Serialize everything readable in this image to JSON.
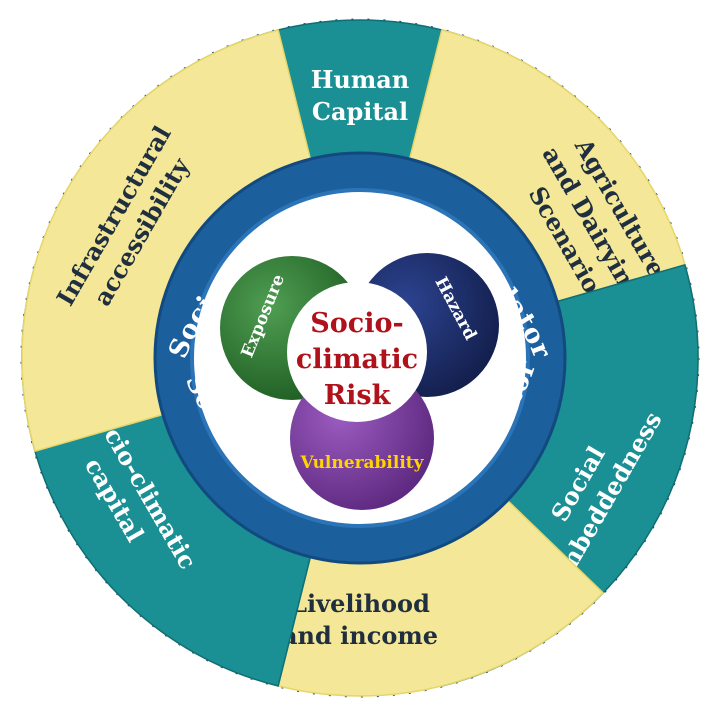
{
  "colors": {
    "teal": "#1a8f94",
    "teal_dark": "#0f6f74",
    "yellow": "#f4e797",
    "yellow_dark": "#e6d66a",
    "ring_outer": "#1b5f9c",
    "ring_inner": "#2c74b8",
    "exposure": "#2f7a33",
    "hazard": "#1b2f6b",
    "vulnerability": "#7b3c9e",
    "center_text": "#b0121b",
    "vulnerability_text": "#ffd400"
  },
  "ring": {
    "top_text": "Socio-climatic Risk Calculator",
    "bottom_text": "Socio-climatic Risk Calculator"
  },
  "segments": [
    {
      "key": "human",
      "color": "teal",
      "text_style": "light",
      "lines": [
        "Human",
        "Capital"
      ]
    },
    {
      "key": "agri",
      "color": "yellow",
      "text_style": "dark",
      "lines": [
        "Agriculture",
        "and Dairying",
        "Scenario"
      ]
    },
    {
      "key": "social",
      "color": "teal",
      "text_style": "light",
      "lines": [
        "Social",
        "embeddedness"
      ]
    },
    {
      "key": "livelihood",
      "color": "yellow",
      "text_style": "dark",
      "lines": [
        "Livelihood",
        "and income"
      ]
    },
    {
      "key": "socio-capital",
      "color": "teal",
      "text_style": "light",
      "lines": [
        "Socio-climatic",
        "capital"
      ]
    },
    {
      "key": "infra",
      "color": "yellow",
      "text_style": "dark",
      "lines": [
        "Infrastructural",
        "accessibility"
      ]
    }
  ],
  "circles": {
    "exposure": "Exposure",
    "hazard": "Hazard",
    "vulnerability": "Vulnerability",
    "center_lines": [
      "Socio-",
      "climatic",
      "Risk"
    ]
  }
}
